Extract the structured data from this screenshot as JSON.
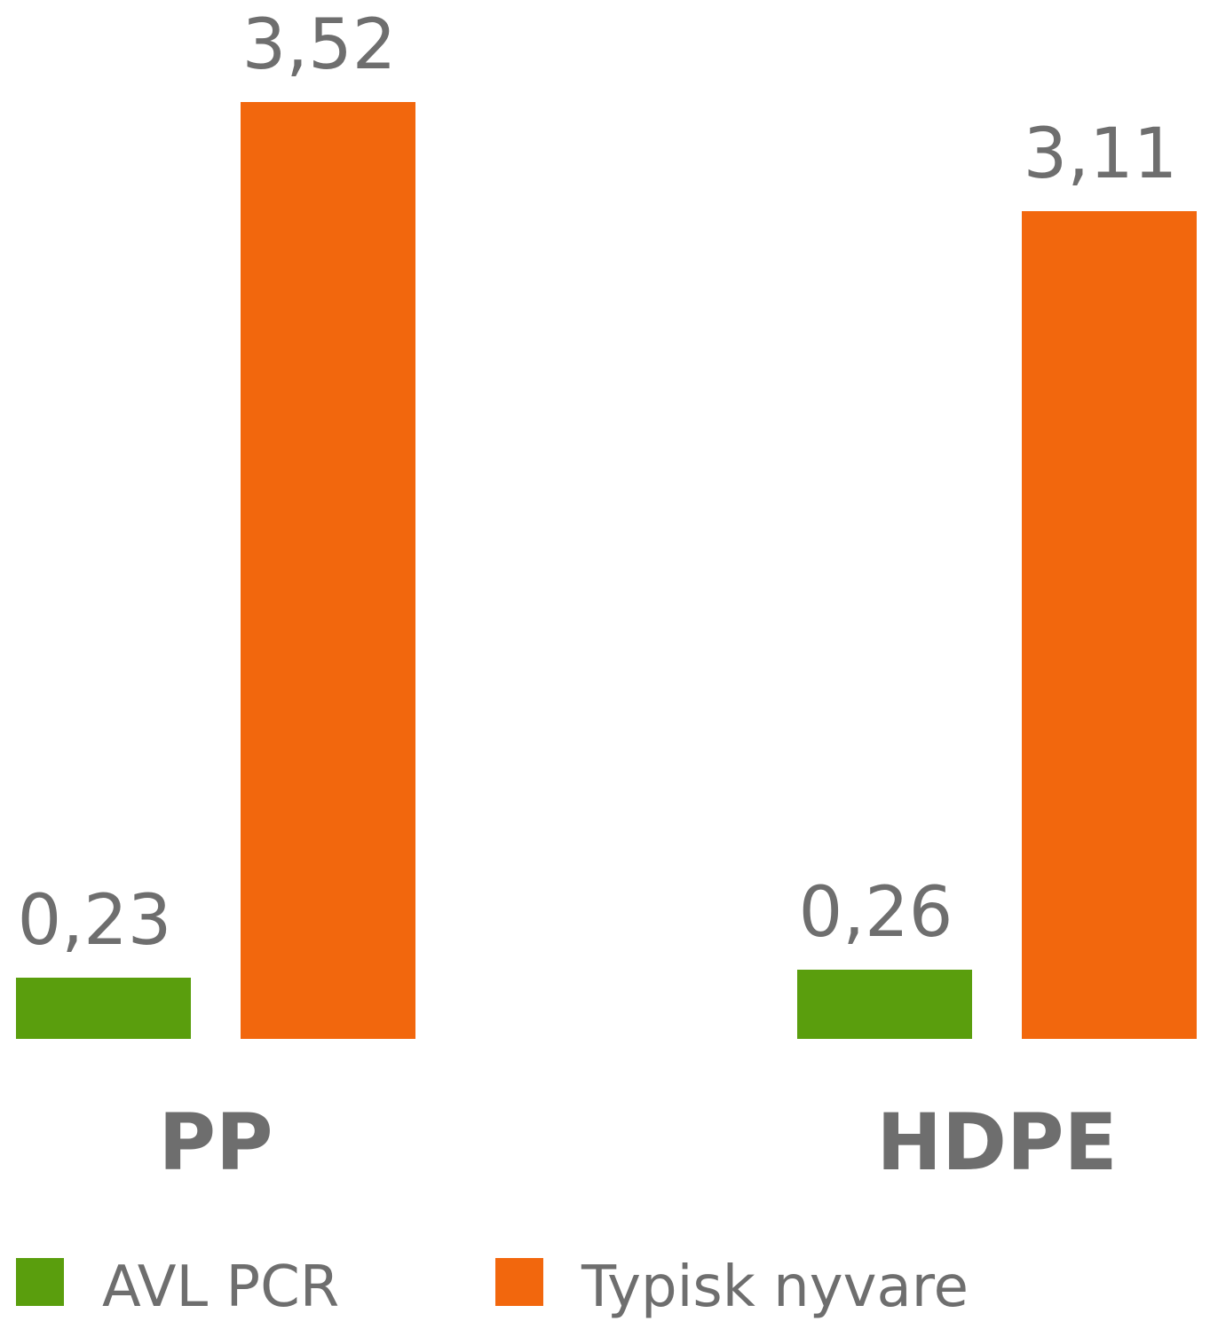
{
  "chart_data": {
    "type": "bar",
    "categories": [
      "PP",
      "HDPE"
    ],
    "series": [
      {
        "name": "AVL PCR",
        "color": "#5a9e0d",
        "values": [
          0.23,
          0.26
        ],
        "value_labels": [
          "0,23",
          "0,26"
        ]
      },
      {
        "name": "Typisk nyvare",
        "color": "#f2670d",
        "values": [
          3.52,
          3.11
        ],
        "value_labels": [
          "3,52",
          "3,11"
        ]
      }
    ]
  }
}
